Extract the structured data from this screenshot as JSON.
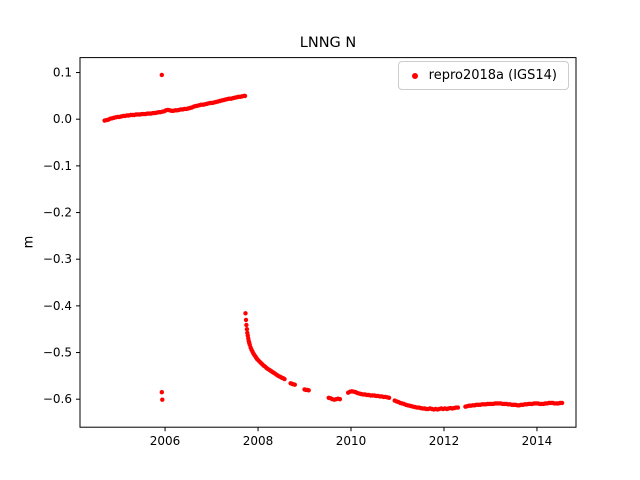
{
  "figure": {
    "title": "LNNG N",
    "ylabel": "m"
  },
  "chart_data": {
    "type": "scatter",
    "title": "LNNG N",
    "xlabel": "",
    "ylabel": "m",
    "xlim": [
      2004.17,
      2014.84
    ],
    "ylim": [
      -0.66,
      0.132
    ],
    "xticks": [
      2006,
      2008,
      2010,
      2012,
      2014
    ],
    "xtick_labels": [
      "2006",
      "2008",
      "2010",
      "2012",
      "2014"
    ],
    "yticks": [
      0.1,
      0.0,
      -0.1,
      -0.2,
      -0.3,
      -0.4,
      -0.5,
      -0.6
    ],
    "ytick_labels": [
      "0.1",
      "0.0",
      "−0.1",
      "−0.2",
      "−0.3",
      "−0.4",
      "−0.5",
      "−0.6"
    ],
    "grid": false,
    "legend_position": "upper right",
    "marker_style": "dot",
    "marker_radius_px": 2.2,
    "series": [
      {
        "name": "repro2018a (IGS14)",
        "color": "#ff0000",
        "points": [
          [
            2004.7,
            -0.003
          ],
          [
            2004.74,
            -0.002
          ],
          [
            2004.78,
            -0.001
          ],
          [
            2004.82,
            0.001
          ],
          [
            2004.86,
            0.002
          ],
          [
            2004.9,
            0.003
          ],
          [
            2004.94,
            0.004
          ],
          [
            2004.98,
            0.005
          ],
          [
            2005.02,
            0.005
          ],
          [
            2005.06,
            0.006
          ],
          [
            2005.1,
            0.007
          ],
          [
            2005.14,
            0.007
          ],
          [
            2005.18,
            0.008
          ],
          [
            2005.22,
            0.008
          ],
          [
            2005.26,
            0.009
          ],
          [
            2005.3,
            0.009
          ],
          [
            2005.34,
            0.009
          ],
          [
            2005.38,
            0.01
          ],
          [
            2005.42,
            0.01
          ],
          [
            2005.46,
            0.01
          ],
          [
            2005.5,
            0.011
          ],
          [
            2005.54,
            0.011
          ],
          [
            2005.58,
            0.011
          ],
          [
            2005.62,
            0.012
          ],
          [
            2005.66,
            0.012
          ],
          [
            2005.7,
            0.012
          ],
          [
            2005.74,
            0.013
          ],
          [
            2005.78,
            0.013
          ],
          [
            2005.82,
            0.014
          ],
          [
            2005.86,
            0.015
          ],
          [
            2005.9,
            0.015
          ],
          [
            2005.94,
            0.016
          ],
          [
            2005.98,
            0.017
          ],
          [
            2006.02,
            0.019
          ],
          [
            2006.06,
            0.02
          ],
          [
            2006.1,
            0.019
          ],
          [
            2006.14,
            0.018
          ],
          [
            2006.18,
            0.018
          ],
          [
            2006.22,
            0.019
          ],
          [
            2006.26,
            0.019
          ],
          [
            2006.3,
            0.02
          ],
          [
            2006.34,
            0.021
          ],
          [
            2006.38,
            0.021
          ],
          [
            2006.42,
            0.022
          ],
          [
            2006.46,
            0.022
          ],
          [
            2006.5,
            0.023
          ],
          [
            2006.54,
            0.024
          ],
          [
            2006.58,
            0.025
          ],
          [
            2006.62,
            0.027
          ],
          [
            2006.66,
            0.028
          ],
          [
            2006.7,
            0.029
          ],
          [
            2006.74,
            0.03
          ],
          [
            2006.78,
            0.031
          ],
          [
            2006.82,
            0.031
          ],
          [
            2006.86,
            0.032
          ],
          [
            2006.9,
            0.033
          ],
          [
            2006.94,
            0.034
          ],
          [
            2006.98,
            0.035
          ],
          [
            2007.02,
            0.035
          ],
          [
            2007.06,
            0.036
          ],
          [
            2007.1,
            0.037
          ],
          [
            2007.14,
            0.038
          ],
          [
            2007.18,
            0.039
          ],
          [
            2007.22,
            0.04
          ],
          [
            2007.26,
            0.041
          ],
          [
            2007.3,
            0.042
          ],
          [
            2007.34,
            0.043
          ],
          [
            2007.38,
            0.044
          ],
          [
            2007.42,
            0.044
          ],
          [
            2007.46,
            0.045
          ],
          [
            2007.5,
            0.046
          ],
          [
            2007.54,
            0.047
          ],
          [
            2007.58,
            0.048
          ],
          [
            2007.62,
            0.048
          ],
          [
            2007.66,
            0.049
          ],
          [
            2007.7,
            0.05
          ],
          [
            2007.72,
            0.05
          ],
          [
            2005.93,
            0.095
          ],
          [
            2005.93,
            -0.585
          ],
          [
            2005.94,
            -0.601
          ],
          [
            2007.73,
            -0.416
          ],
          [
            2007.74,
            -0.43
          ],
          [
            2007.75,
            -0.441
          ],
          [
            2007.76,
            -0.45
          ],
          [
            2007.77,
            -0.458
          ],
          [
            2007.78,
            -0.464
          ],
          [
            2007.79,
            -0.47
          ],
          [
            2007.8,
            -0.475
          ],
          [
            2007.81,
            -0.479
          ],
          [
            2007.82,
            -0.483
          ],
          [
            2007.84,
            -0.489
          ],
          [
            2007.86,
            -0.494
          ],
          [
            2007.88,
            -0.498
          ],
          [
            2007.9,
            -0.502
          ],
          [
            2007.92,
            -0.505
          ],
          [
            2007.94,
            -0.508
          ],
          [
            2007.96,
            -0.511
          ],
          [
            2007.98,
            -0.514
          ],
          [
            2008.0,
            -0.516
          ],
          [
            2008.03,
            -0.519
          ],
          [
            2008.06,
            -0.522
          ],
          [
            2008.09,
            -0.525
          ],
          [
            2008.12,
            -0.528
          ],
          [
            2008.15,
            -0.53
          ],
          [
            2008.18,
            -0.533
          ],
          [
            2008.21,
            -0.535
          ],
          [
            2008.24,
            -0.537
          ],
          [
            2008.27,
            -0.539
          ],
          [
            2008.3,
            -0.541
          ],
          [
            2008.33,
            -0.543
          ],
          [
            2008.36,
            -0.545
          ],
          [
            2008.39,
            -0.547
          ],
          [
            2008.42,
            -0.549
          ],
          [
            2008.45,
            -0.551
          ],
          [
            2008.48,
            -0.552
          ],
          [
            2008.51,
            -0.554
          ],
          [
            2008.54,
            -0.555
          ],
          [
            2008.57,
            -0.557
          ],
          [
            2008.7,
            -0.566
          ],
          [
            2008.73,
            -0.567
          ],
          [
            2008.76,
            -0.568
          ],
          [
            2008.79,
            -0.569
          ],
          [
            2009.0,
            -0.579
          ],
          [
            2009.03,
            -0.58
          ],
          [
            2009.06,
            -0.58
          ],
          [
            2009.09,
            -0.581
          ],
          [
            2009.52,
            -0.597
          ],
          [
            2009.56,
            -0.598
          ],
          [
            2009.6,
            -0.6
          ],
          [
            2009.64,
            -0.601
          ],
          [
            2009.68,
            -0.6
          ],
          [
            2009.72,
            -0.599
          ],
          [
            2009.76,
            -0.6
          ],
          [
            2009.94,
            -0.586
          ],
          [
            2009.98,
            -0.584
          ],
          [
            2010.02,
            -0.583
          ],
          [
            2010.06,
            -0.584
          ],
          [
            2010.1,
            -0.585
          ],
          [
            2010.14,
            -0.587
          ],
          [
            2010.18,
            -0.588
          ],
          [
            2010.22,
            -0.589
          ],
          [
            2010.26,
            -0.59
          ],
          [
            2010.3,
            -0.59
          ],
          [
            2010.34,
            -0.591
          ],
          [
            2010.38,
            -0.591
          ],
          [
            2010.42,
            -0.592
          ],
          [
            2010.46,
            -0.592
          ],
          [
            2010.5,
            -0.592
          ],
          [
            2010.54,
            -0.593
          ],
          [
            2010.58,
            -0.593
          ],
          [
            2010.62,
            -0.594
          ],
          [
            2010.66,
            -0.594
          ],
          [
            2010.7,
            -0.595
          ],
          [
            2010.74,
            -0.595
          ],
          [
            2010.78,
            -0.596
          ],
          [
            2010.82,
            -0.597
          ],
          [
            2010.94,
            -0.603
          ],
          [
            2010.98,
            -0.605
          ],
          [
            2011.02,
            -0.606
          ],
          [
            2011.06,
            -0.608
          ],
          [
            2011.1,
            -0.609
          ],
          [
            2011.14,
            -0.61
          ],
          [
            2011.18,
            -0.612
          ],
          [
            2011.22,
            -0.613
          ],
          [
            2011.26,
            -0.614
          ],
          [
            2011.3,
            -0.615
          ],
          [
            2011.34,
            -0.616
          ],
          [
            2011.38,
            -0.617
          ],
          [
            2011.42,
            -0.618
          ],
          [
            2011.46,
            -0.618
          ],
          [
            2011.5,
            -0.619
          ],
          [
            2011.54,
            -0.62
          ],
          [
            2011.58,
            -0.62
          ],
          [
            2011.62,
            -0.621
          ],
          [
            2011.66,
            -0.621
          ],
          [
            2011.7,
            -0.62
          ],
          [
            2011.74,
            -0.621
          ],
          [
            2011.78,
            -0.622
          ],
          [
            2011.82,
            -0.621
          ],
          [
            2011.86,
            -0.622
          ],
          [
            2011.9,
            -0.621
          ],
          [
            2011.94,
            -0.62
          ],
          [
            2011.98,
            -0.621
          ],
          [
            2012.02,
            -0.62
          ],
          [
            2012.06,
            -0.621
          ],
          [
            2012.1,
            -0.62
          ],
          [
            2012.14,
            -0.619
          ],
          [
            2012.18,
            -0.62
          ],
          [
            2012.22,
            -0.619
          ],
          [
            2012.26,
            -0.618
          ],
          [
            2012.3,
            -0.618
          ],
          [
            2012.46,
            -0.616
          ],
          [
            2012.5,
            -0.615
          ],
          [
            2012.54,
            -0.614
          ],
          [
            2012.58,
            -0.614
          ],
          [
            2012.62,
            -0.613
          ],
          [
            2012.66,
            -0.613
          ],
          [
            2012.7,
            -0.612
          ],
          [
            2012.74,
            -0.612
          ],
          [
            2012.78,
            -0.612
          ],
          [
            2012.82,
            -0.611
          ],
          [
            2012.86,
            -0.611
          ],
          [
            2012.9,
            -0.611
          ],
          [
            2012.94,
            -0.61
          ],
          [
            2012.98,
            -0.61
          ],
          [
            2013.02,
            -0.61
          ],
          [
            2013.06,
            -0.61
          ],
          [
            2013.1,
            -0.609
          ],
          [
            2013.14,
            -0.609
          ],
          [
            2013.18,
            -0.609
          ],
          [
            2013.22,
            -0.609
          ],
          [
            2013.26,
            -0.61
          ],
          [
            2013.3,
            -0.61
          ],
          [
            2013.34,
            -0.61
          ],
          [
            2013.38,
            -0.611
          ],
          [
            2013.42,
            -0.611
          ],
          [
            2013.46,
            -0.612
          ],
          [
            2013.5,
            -0.612
          ],
          [
            2013.54,
            -0.612
          ],
          [
            2013.58,
            -0.613
          ],
          [
            2013.62,
            -0.613
          ],
          [
            2013.66,
            -0.612
          ],
          [
            2013.7,
            -0.612
          ],
          [
            2013.74,
            -0.611
          ],
          [
            2013.78,
            -0.611
          ],
          [
            2013.82,
            -0.61
          ],
          [
            2013.86,
            -0.61
          ],
          [
            2013.9,
            -0.61
          ],
          [
            2013.94,
            -0.609
          ],
          [
            2013.98,
            -0.609
          ],
          [
            2014.02,
            -0.609
          ],
          [
            2014.06,
            -0.61
          ],
          [
            2014.1,
            -0.61
          ],
          [
            2014.14,
            -0.61
          ],
          [
            2014.18,
            -0.609
          ],
          [
            2014.22,
            -0.609
          ],
          [
            2014.26,
            -0.608
          ],
          [
            2014.3,
            -0.608
          ],
          [
            2014.34,
            -0.608
          ],
          [
            2014.38,
            -0.609
          ],
          [
            2014.42,
            -0.609
          ],
          [
            2014.46,
            -0.609
          ],
          [
            2014.5,
            -0.608
          ],
          [
            2014.54,
            -0.608
          ]
        ]
      }
    ]
  }
}
